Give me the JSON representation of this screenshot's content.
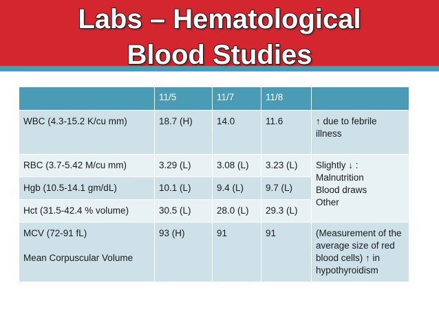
{
  "title": {
    "line1": "Labs – Hematological",
    "line2": "Blood Studies"
  },
  "table": {
    "headers": [
      "",
      "11/5",
      "11/7",
      "11/8",
      ""
    ],
    "rows": [
      {
        "test": "WBC (4.3-15.2  K/cu mm)",
        "d1": "18.7 (H)",
        "d2": "14.0",
        "d3": "11.6",
        "comment": "↑ due to febrile illness"
      },
      {
        "test": "RBC (3.7-5.42 M/cu mm)",
        "d1": "3.29 (L)",
        "d2": "3.08 (L)",
        "d3": "3.23 (L)"
      },
      {
        "test": "Hgb (10.5-14.1 gm/dL)",
        "d1": "10.1 (L)",
        "d2": "9.4 (L)",
        "d3": "9.7 (L)"
      },
      {
        "test": "Hct (31.5-42.4 % volume)",
        "d1": "30.5 (L)",
        "d2": "28.0 (L)",
        "d3": "29.3 (L)"
      },
      {
        "test": "MCV (72-91 fL)",
        "test_sub": "Mean Corpuscular Volume",
        "d1": "93 (H)",
        "d2": "91",
        "d3": "91",
        "comment": "(Measurement of the average size of red blood cells) ↑ in hypothyroidism"
      }
    ],
    "merged_comment": {
      "line1": "Slightly ↓ :",
      "line2": "Malnutrition",
      "line3": "Blood draws",
      "line4": "Other"
    }
  },
  "colors": {
    "banner": "#d3262f",
    "stripe": "#4a9bb5",
    "header": "#4a9bb5",
    "row_light": "#cfe1e8",
    "row_lighter": "#e8f1f4"
  }
}
